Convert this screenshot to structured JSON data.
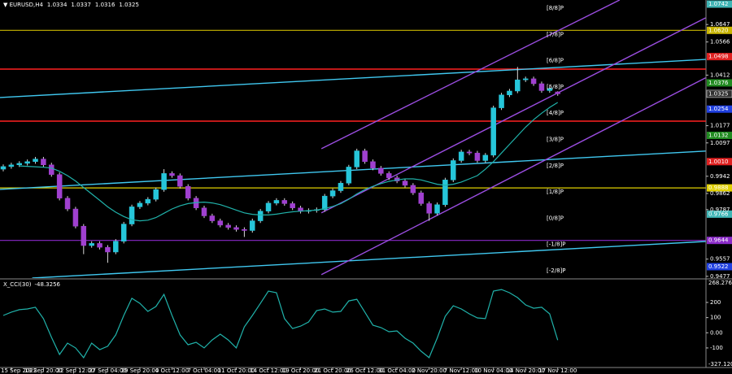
{
  "chart_data": {
    "type": "candlestick",
    "symbol": "EURUSD,H4",
    "categories": [
      null,
      "15 Sep 2022",
      null,
      null,
      null,
      "19 Sep 20:00",
      null,
      null,
      null,
      "22 Sep 12:00",
      null,
      null,
      null,
      "27 Sep 04:00",
      null,
      null,
      null,
      "29 Sep 20:00",
      null,
      null,
      null,
      "4 Oct 12:00",
      null,
      null,
      null,
      "7 Oct 04:00",
      null,
      null,
      null,
      "11 Oct 20:00",
      null,
      null,
      null,
      "14 Oct 12:00",
      null,
      null,
      null,
      "19 Oct 20:00",
      null,
      null,
      null,
      "21 Oct 20:00",
      null,
      null,
      null,
      "26 Oct 12:00",
      null,
      null,
      null,
      "31 Oct 04:00",
      null,
      null,
      null,
      "2 Nov 20:00",
      null,
      null,
      null,
      "7 Nov 12:00",
      null,
      null,
      null,
      "10 Nov 04:00",
      null,
      null,
      null,
      "14 Nov 20:00",
      null,
      null,
      null,
      "17 Nov 12:00"
    ],
    "open": [
      0.9975,
      0.9987,
      0.9995,
      1.0002,
      1.001,
      1.0022,
      0.9995,
      0.995,
      0.984,
      0.979,
      0.971,
      0.962,
      0.963,
      0.9612,
      0.959,
      0.964,
      0.972,
      0.98,
      0.9817,
      0.9835,
      0.988,
      0.9955,
      0.9945,
      0.9895,
      0.984,
      0.9795,
      0.9758,
      0.9735,
      0.9715,
      0.9704,
      0.9695,
      0.969,
      0.9735,
      0.978,
      0.9817,
      0.983,
      0.9815,
      0.9795,
      0.9779,
      0.9783,
      0.9787,
      0.985,
      0.9875,
      0.991,
      0.9985,
      1.006,
      1.001,
      0.998,
      0.9955,
      0.9935,
      0.992,
      0.99,
      0.9865,
      0.9815,
      0.977,
      0.981,
      0.9925,
      1.0015,
      1.0055,
      1.005,
      1.0015,
      1.004,
      1.026,
      1.032,
      1.0338,
      1.039,
      1.0395,
      1.0372,
      1.034,
      1.0334
    ],
    "high": [
      0.9997,
      1.0005,
      1.0012,
      1.002,
      1.0032,
      1.0032,
      1.0005,
      0.996,
      0.985,
      0.98,
      0.972,
      0.964,
      0.964,
      0.9622,
      0.965,
      0.973,
      0.981,
      0.9827,
      0.9845,
      0.989,
      0.9975,
      0.9965,
      0.9955,
      0.9905,
      0.985,
      0.9805,
      0.9768,
      0.9745,
      0.9725,
      0.9714,
      0.9705,
      0.9745,
      0.979,
      0.9827,
      0.984,
      0.984,
      0.9825,
      0.9805,
      0.9793,
      0.9797,
      0.986,
      0.9885,
      0.992,
      0.9995,
      1.007,
      1.007,
      1.002,
      0.999,
      0.9965,
      0.9945,
      0.993,
      0.991,
      0.9875,
      0.9825,
      0.982,
      0.9935,
      1.0025,
      1.0065,
      1.0065,
      1.006,
      1.005,
      1.027,
      1.033,
      1.0348,
      1.045,
      1.0405,
      1.0405,
      1.0382,
      1.036,
      1.0337
    ],
    "low": [
      0.9965,
      0.9977,
      0.9985,
      0.9992,
      1.0,
      0.9985,
      0.994,
      0.983,
      0.978,
      0.97,
      0.958,
      0.961,
      0.9602,
      0.954,
      0.958,
      0.963,
      0.971,
      0.979,
      0.9807,
      0.9825,
      0.987,
      0.9935,
      0.9885,
      0.983,
      0.9785,
      0.9748,
      0.9725,
      0.9705,
      0.9694,
      0.9685,
      0.966,
      0.968,
      0.9725,
      0.977,
      0.9807,
      0.9805,
      0.9785,
      0.9769,
      0.9769,
      0.9773,
      0.9777,
      0.984,
      0.9865,
      0.99,
      0.9975,
      1.0,
      0.997,
      0.9945,
      0.9925,
      0.991,
      0.989,
      0.9855,
      0.9805,
      0.9735,
      0.976,
      0.98,
      0.9915,
      1.0005,
      1.004,
      1.0005,
      1.0005,
      1.003,
      1.025,
      1.031,
      1.0328,
      1.038,
      1.0362,
      1.033,
      1.033,
      1.0316
    ],
    "close": [
      0.9987,
      0.9995,
      1.0002,
      1.001,
      1.0022,
      0.9995,
      0.995,
      0.984,
      0.979,
      0.971,
      0.962,
      0.963,
      0.9612,
      0.959,
      0.964,
      0.972,
      0.98,
      0.9817,
      0.9835,
      0.988,
      0.9955,
      0.9945,
      0.9895,
      0.984,
      0.9795,
      0.9758,
      0.9735,
      0.9715,
      0.9704,
      0.9695,
      0.969,
      0.9735,
      0.978,
      0.9817,
      0.983,
      0.9815,
      0.9795,
      0.9779,
      0.9783,
      0.9787,
      0.985,
      0.9875,
      0.991,
      0.9985,
      1.006,
      1.001,
      0.998,
      0.9955,
      0.9935,
      0.992,
      0.99,
      0.9865,
      0.9815,
      0.977,
      0.981,
      0.9925,
      1.0015,
      1.0055,
      1.005,
      1.0015,
      1.004,
      1.026,
      1.032,
      1.0338,
      1.039,
      1.0395,
      1.0372,
      1.034,
      1.035,
      1.0325
    ],
    "up_color": "#26c6da",
    "down_color": "#a040d0",
    "ylim": [
      0.9469,
      1.0761
    ],
    "yticks": [
      1.0647,
      1.0566,
      1.0412,
      1.0177,
      1.0097,
      0.9942,
      0.9862,
      0.9787,
      0.9557,
      0.9477
    ],
    "grid": false,
    "ma": {
      "color": "#20b2aa",
      "values": [
        null,
        null,
        0.999,
        0.9988,
        0.9986,
        0.9984,
        0.998,
        0.9965,
        0.9945,
        0.992,
        0.989,
        0.986,
        0.983,
        0.98,
        0.9775,
        0.9755,
        0.974,
        0.9735,
        0.9738,
        0.975,
        0.977,
        0.979,
        0.9805,
        0.9815,
        0.982,
        0.9822,
        0.9818,
        0.981,
        0.9798,
        0.9785,
        0.9772,
        0.9765,
        0.9762,
        0.9762,
        0.9766,
        0.9772,
        0.9777,
        0.978,
        0.9782,
        0.9785,
        0.9792,
        0.9802,
        0.9815,
        0.9835,
        0.986,
        0.988,
        0.9895,
        0.9908,
        0.9918,
        0.9925,
        0.993,
        0.993,
        0.9925,
        0.9915,
        0.9905,
        0.99,
        0.9905,
        0.9915,
        0.993,
        0.9945,
        0.9975,
        1.001,
        1.005,
        1.009,
        1.013,
        1.017,
        1.0205,
        1.0235,
        1.0262,
        1.0285
      ]
    },
    "murray": [
      {
        "name": "[8/8]P",
        "value": 1.0742,
        "color": "#3fb5b5",
        "line": false
      },
      {
        "name": "[7/8]P",
        "value": 1.062,
        "value_label": "1.0620",
        "color": "#c8b400",
        "line": true
      },
      {
        "name": "[6/8]P",
        "value": 1.0498,
        "color": "#e02020",
        "line": false
      },
      {
        "name": "[5/8]P",
        "value": 1.0376,
        "color": "#208a20",
        "line": false
      },
      {
        "name": "[4/8]P",
        "value": 1.0254,
        "color": "#2040e0",
        "line": false
      },
      {
        "name": "[3/8]P",
        "value": 1.0132,
        "color": "#208a20",
        "line": false
      },
      {
        "name": "[2/8]P",
        "value": 1.001,
        "value_label": "1.0010",
        "color": "#e02020",
        "line": false
      },
      {
        "name": "[1/8]P",
        "value": 0.9888,
        "color": "#e0d000",
        "line": true
      },
      {
        "name": "[0/8]P",
        "value": 0.9766,
        "color": "#3fb5b5",
        "line": false
      },
      {
        "name": "[-1/8]P",
        "value": 0.9644,
        "color": "#8a2ac8",
        "line": true
      },
      {
        "name": "[-2/8]P",
        "value": 0.9522,
        "color": "#2040e0",
        "line": false
      }
    ],
    "hlines": [
      {
        "value": 1.044,
        "color": "#ff2020"
      },
      {
        "value": 1.0198,
        "color": "#ff2020"
      }
    ],
    "trendlines": [
      {
        "color": "#40c8f0",
        "points": [
          [
            -0.4,
            1.0308
          ],
          [
            87.4,
            1.0485
          ]
        ]
      },
      {
        "color": "#40c8f0",
        "points": [
          [
            -0.4,
            0.9881
          ],
          [
            87.4,
            1.0059
          ]
        ]
      },
      {
        "color": "#40c8f0",
        "points": [
          [
            3.6,
            0.9469
          ],
          [
            87.4,
            0.9639
          ]
        ]
      },
      {
        "color": "#9a4de0",
        "points": [
          [
            39.6,
            1.007
          ],
          [
            76.7,
            1.0761
          ]
        ]
      },
      {
        "color": "#9a4de0",
        "points": [
          [
            39.6,
            0.9772
          ],
          [
            87.4,
            1.0678
          ]
        ]
      },
      {
        "color": "#9a4de0",
        "points": [
          [
            39.6,
            0.9485
          ],
          [
            87.4,
            1.0399
          ]
        ]
      }
    ],
    "indicator": {
      "type": "line",
      "name": "X_CCI(30)",
      "color": "#20b2aa",
      "values": [
        114,
        136,
        152,
        157,
        168,
        93,
        -30,
        -143,
        -68,
        -100,
        -164,
        -68,
        -111,
        -89,
        -14,
        114,
        227,
        194,
        141,
        173,
        253,
        114,
        -14,
        -79,
        -63,
        -100,
        -47,
        -9,
        -47,
        -100,
        39,
        114,
        194,
        275,
        264,
        93,
        28,
        44,
        71,
        146,
        157,
        136,
        141,
        210,
        221,
        136,
        50,
        34,
        7,
        12,
        -36,
        -68,
        -122,
        -164,
        -36,
        109,
        178,
        157,
        125,
        98,
        93,
        275,
        285,
        264,
        232,
        184,
        162,
        168,
        125,
        -48.3256
      ],
      "ylim": [
        -229,
        350
      ],
      "yticks": [
        200,
        100,
        {
          "value": 0,
          "label": "0.00"
        },
        -100
      ],
      "range_labels": [
        268.2764,
        -327.1204
      ]
    }
  }
}
